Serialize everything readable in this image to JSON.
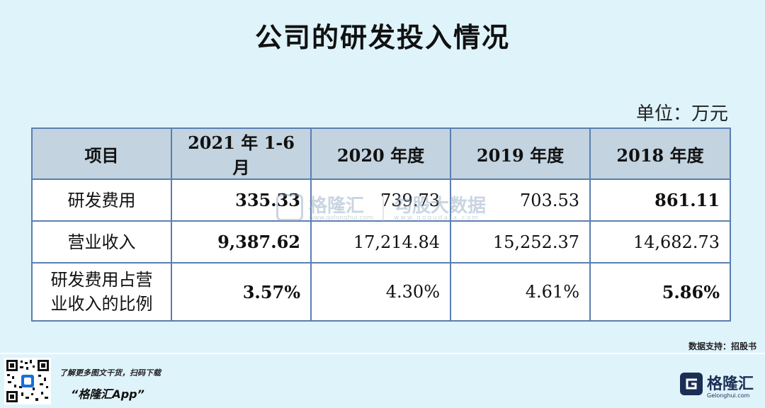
{
  "title": "公司的研发投入情况",
  "unit": "单位：万元",
  "table": {
    "headers": [
      "项目",
      "2021 年 1-6 月",
      "2020 年度",
      "2019 年度",
      "2018 年度"
    ],
    "rows": [
      {
        "label": "研发费用",
        "values": [
          "335.33",
          "739.73",
          "703.53",
          "861.11"
        ]
      },
      {
        "label": "营业收入",
        "values": [
          "9,387.62",
          "17,214.84",
          "15,252.37",
          "14,682.73"
        ]
      },
      {
        "label": "研发费用占营业收入的比例",
        "label_line1": "研发费用占营",
        "label_line2": "业收入的比例",
        "values": [
          "3.57%",
          "4.30%",
          "4.61%",
          "5.86%"
        ]
      }
    ]
  },
  "watermark": {
    "name": "格隆汇",
    "sub": "www.gelonghui.com",
    "name2": "勾股大数据",
    "sub2": "www.gogudata.com"
  },
  "source": "数据支持：招股书",
  "footer": {
    "promo_line1": "了解更多图文干货，扫码下载",
    "promo_line2": "“格隆汇App”",
    "brand_name": "格隆汇",
    "brand_sub": "Gelonghui.com"
  }
}
